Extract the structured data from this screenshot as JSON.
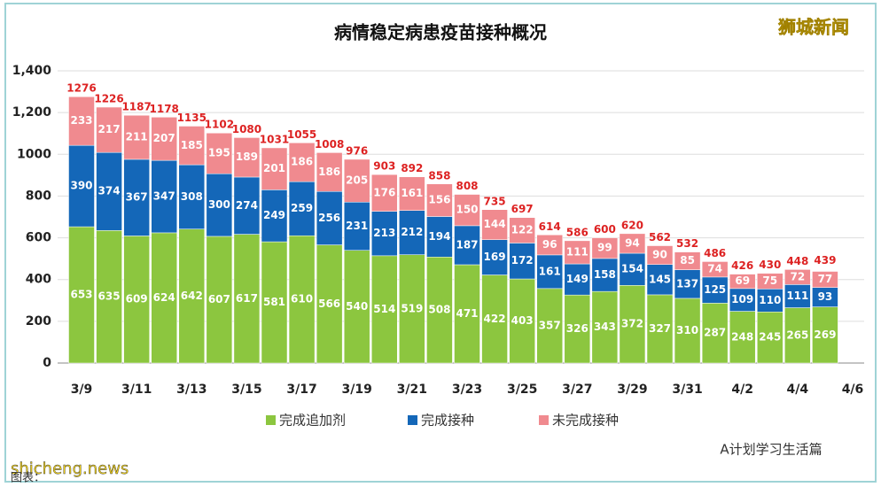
{
  "chart_data": {
    "type": "stacked_bar",
    "title": "病情稳定病患疫苗接种概况",
    "categories": [
      "3/9",
      null,
      "3/11",
      null,
      "3/13",
      null,
      "3/15",
      null,
      "3/17",
      null,
      "3/19",
      null,
      "3/21",
      null,
      "3/23",
      null,
      "3/25",
      null,
      "3/27",
      null,
      "3/29",
      null,
      "3/31",
      null,
      "4/2",
      null,
      "4/4",
      null,
      "4/6"
    ],
    "series": [
      {
        "name": "完成追加剂",
        "color": "#8cc63f",
        "values": [
          653,
          635,
          609,
          624,
          642,
          607,
          617,
          581,
          610,
          566,
          540,
          514,
          519,
          508,
          471,
          422,
          403,
          357,
          326,
          343,
          372,
          327,
          310,
          287,
          248,
          245,
          265,
          269,
          null
        ]
      },
      {
        "name": "完成接种",
        "color": "#1467b8",
        "values": [
          390,
          374,
          367,
          347,
          308,
          300,
          274,
          249,
          259,
          256,
          231,
          213,
          212,
          194,
          187,
          169,
          172,
          161,
          149,
          158,
          154,
          145,
          137,
          125,
          109,
          110,
          111,
          93,
          null
        ]
      },
      {
        "name": "未完成接种",
        "color": "#f08a8f",
        "values": [
          233,
          217,
          211,
          207,
          185,
          195,
          189,
          201,
          186,
          186,
          205,
          176,
          161,
          156,
          150,
          144,
          122,
          96,
          111,
          99,
          94,
          90,
          85,
          74,
          69,
          75,
          72,
          77,
          null
        ]
      }
    ],
    "totals": [
      1276,
      1226,
      1187,
      1178,
      1135,
      1102,
      1080,
      1031,
      1055,
      1008,
      976,
      903,
      892,
      858,
      808,
      735,
      697,
      614,
      586,
      600,
      620,
      562,
      532,
      486,
      426,
      430,
      448,
      439,
      null
    ],
    "ylim": [
      0,
      1400
    ],
    "yticks": [
      0,
      200,
      400,
      600,
      800,
      1000,
      {
        "value": 1200,
        "label": "1,200"
      },
      {
        "value": 1400,
        "label": "1,400"
      }
    ],
    "grid": true,
    "watermarks": [
      "狮城新闻",
      "shicheng.news",
      "A计划学习生活篇",
      "图表："
    ]
  }
}
